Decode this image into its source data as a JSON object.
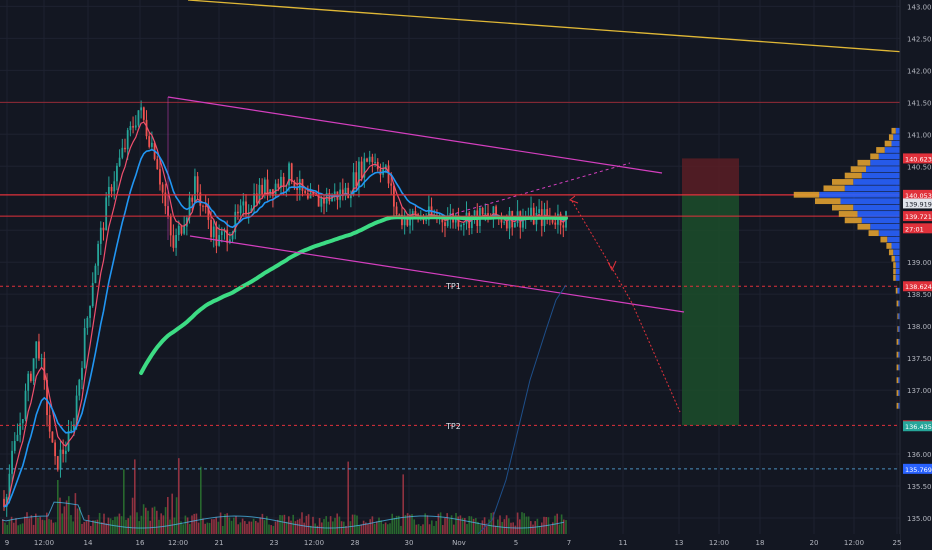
{
  "chart_data": {
    "type": "candlestick",
    "colors": {
      "background": "#131722",
      "grid": "#1e2230",
      "axis_text": "#b2b5be",
      "up": "#26a69a",
      "down": "#ef5350",
      "ema_fast": "#f0506e",
      "ema_slow": "#2196f3",
      "ema_long": "#3ddc84",
      "channel": "#d43fbf",
      "trendline_top": "#e0b836",
      "target_line": "#e0313b",
      "profit_zone": "#1c4a2a",
      "loss_zone": "#5a1d24",
      "volume_up": "#2e7d32",
      "volume_down": "#b23a48",
      "vp_buy": "#2962ff",
      "vp_sell": "#e0a030",
      "price_tag_red": "#e0313b",
      "price_tag_green": "#26a69a"
    },
    "y_range": [
      134.75,
      143.1
    ],
    "x_ticks": [
      "9",
      "12:00",
      "14",
      "16",
      "12:00",
      "21",
      "23",
      "12:00",
      "28",
      "30",
      "Nov",
      "5",
      "7",
      "11",
      "13",
      "12:00",
      "18",
      "20",
      "12:00",
      "25"
    ],
    "y_ticks": [
      "143.000",
      "142.500",
      "142.000",
      "141.500",
      "141.000",
      "140.500",
      "139.500",
      "139.000",
      "138.500",
      "138.000",
      "137.500",
      "137.000",
      "136.000",
      "135.500",
      "135.000"
    ],
    "annotations": [
      "TP1",
      "TP2"
    ],
    "price_tags": [
      {
        "label": "140.623",
        "price": 140.623,
        "color": "red"
      },
      {
        "label": "140.053",
        "price": 140.053,
        "color": "red"
      },
      {
        "label": "139.919",
        "price": 139.919,
        "color": "white"
      },
      {
        "label": "139.721",
        "price": 139.721,
        "color": "red"
      },
      {
        "label": "27:01",
        "price": 139.53,
        "color": "red"
      },
      {
        "label": "138.624",
        "price": 138.624,
        "color": "red"
      },
      {
        "label": "136.449",
        "price": 136.449,
        "color": "red"
      },
      {
        "label": "136.435",
        "price": 136.435,
        "color": "green"
      },
      {
        "label": "135.769",
        "price": 135.769,
        "color": "blue"
      }
    ],
    "levels": {
      "entry": 140.053,
      "stop": 140.623,
      "tp1": 138.624,
      "tp2": 136.449,
      "support": 135.769,
      "current": 139.721
    },
    "price_path": [
      [
        0,
        135.3
      ],
      [
        0.06,
        137.8
      ],
      [
        0.09,
        135.8
      ],
      [
        0.12,
        136.3
      ],
      [
        0.16,
        138.9
      ],
      [
        0.19,
        140.2
      ],
      [
        0.24,
        141.4
      ],
      [
        0.27,
        140.7
      ],
      [
        0.3,
        139.2
      ],
      [
        0.34,
        140.2
      ],
      [
        0.38,
        139.3
      ],
      [
        0.41,
        139.6
      ],
      [
        0.45,
        140.1
      ],
      [
        0.48,
        140.2
      ],
      [
        0.51,
        140.4
      ],
      [
        0.54,
        139.9
      ],
      [
        0.57,
        140.0
      ],
      [
        0.61,
        140.1
      ],
      [
        0.65,
        140.7
      ],
      [
        0.68,
        140.4
      ],
      [
        0.7,
        139.7
      ]
    ],
    "volume_profile": [
      {
        "price": 141.05,
        "buy": 0.05,
        "sell": 0.05
      },
      {
        "price": 140.95,
        "buy": 0.08,
        "sell": 0.05
      },
      {
        "price": 140.85,
        "buy": 0.1,
        "sell": 0.08
      },
      {
        "price": 140.75,
        "buy": 0.18,
        "sell": 0.1
      },
      {
        "price": 140.65,
        "buy": 0.25,
        "sell": 0.1
      },
      {
        "price": 140.55,
        "buy": 0.35,
        "sell": 0.15
      },
      {
        "price": 140.45,
        "buy": 0.4,
        "sell": 0.18
      },
      {
        "price": 140.35,
        "buy": 0.45,
        "sell": 0.2
      },
      {
        "price": 140.25,
        "buy": 0.55,
        "sell": 0.25
      },
      {
        "price": 140.15,
        "buy": 0.65,
        "sell": 0.25
      },
      {
        "price": 140.05,
        "buy": 0.95,
        "sell": 0.3
      },
      {
        "price": 139.95,
        "buy": 0.7,
        "sell": 0.3
      },
      {
        "price": 139.85,
        "buy": 0.55,
        "sell": 0.25
      },
      {
        "price": 139.75,
        "buy": 0.5,
        "sell": 0.22
      },
      {
        "price": 139.65,
        "buy": 0.45,
        "sell": 0.2
      },
      {
        "price": 139.55,
        "buy": 0.35,
        "sell": 0.15
      },
      {
        "price": 139.45,
        "buy": 0.25,
        "sell": 0.12
      },
      {
        "price": 139.35,
        "buy": 0.15,
        "sell": 0.08
      },
      {
        "price": 139.25,
        "buy": 0.1,
        "sell": 0.06
      },
      {
        "price": 139.15,
        "buy": 0.08,
        "sell": 0.05
      },
      {
        "price": 139.05,
        "buy": 0.06,
        "sell": 0.04
      },
      {
        "price": 138.95,
        "buy": 0.05,
        "sell": 0.03
      },
      {
        "price": 138.85,
        "buy": 0.05,
        "sell": 0.03
      },
      {
        "price": 138.75,
        "buy": 0.05,
        "sell": 0.03
      },
      {
        "price": 138.55,
        "buy": 0.03,
        "sell": 0.02
      },
      {
        "price": 138.35,
        "buy": 0.02,
        "sell": 0.02
      },
      {
        "price": 138.15,
        "buy": 0.02,
        "sell": 0.01
      },
      {
        "price": 137.95,
        "buy": 0.02,
        "sell": 0.01
      },
      {
        "price": 137.75,
        "buy": 0.02,
        "sell": 0.02
      },
      {
        "price": 137.55,
        "buy": 0.02,
        "sell": 0.02
      },
      {
        "price": 137.35,
        "buy": 0.02,
        "sell": 0.02
      },
      {
        "price": 137.15,
        "buy": 0.02,
        "sell": 0.02
      },
      {
        "price": 136.95,
        "buy": 0.02,
        "sell": 0.02
      },
      {
        "price": 136.75,
        "buy": 0.02,
        "sell": 0.02
      }
    ]
  }
}
